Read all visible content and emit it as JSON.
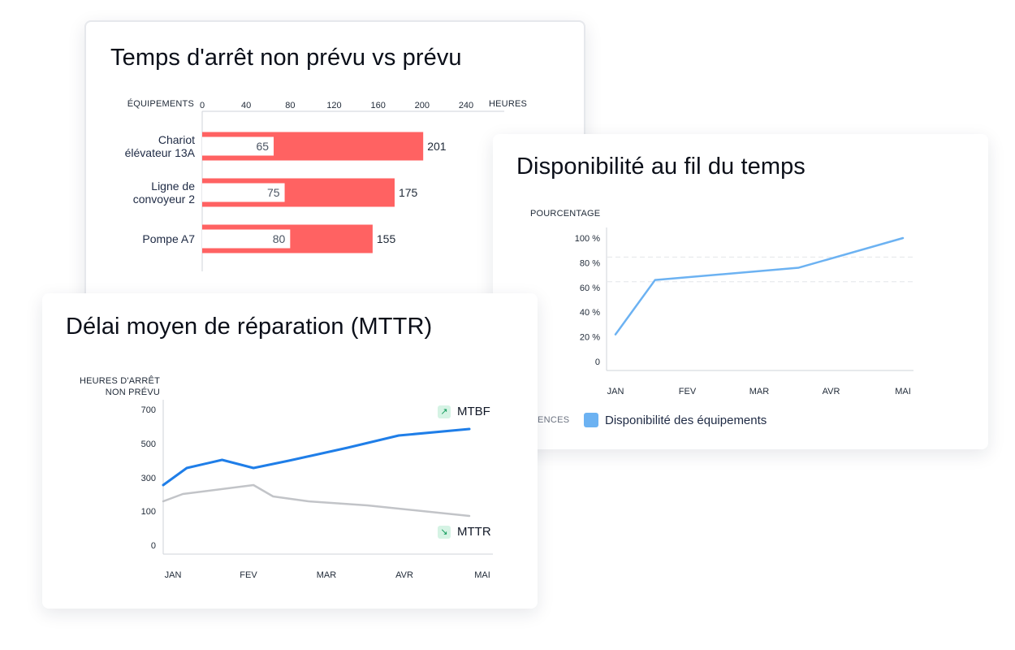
{
  "cards": {
    "downtime": {
      "title": "Temps d'arrêt non prévu vs prévu"
    },
    "availability": {
      "title": "Disponibilité au fil du temps"
    },
    "mttr": {
      "title": "Délai moyen de réparation (MTTR)"
    }
  },
  "chart_data": [
    {
      "id": "downtime",
      "type": "bar",
      "title": "Temps d'arrêt non prévu vs prévu",
      "ylabel": "ÉQUIPEMENTS",
      "xlabel": "HEURES",
      "xticks": [
        0,
        40,
        80,
        120,
        160,
        200,
        240
      ],
      "xlim": [
        0,
        260
      ],
      "categories": [
        [
          "Chariot",
          "élévateur 13A"
        ],
        [
          "Ligne de",
          "convoyeur 2"
        ],
        [
          "Pompe A7"
        ]
      ],
      "series": [
        {
          "values": [
            201,
            175,
            155
          ],
          "color": "#ff6262"
        },
        {
          "values": [
            65,
            75,
            80
          ],
          "color": "#ffffff"
        }
      ],
      "grid": false
    },
    {
      "id": "availability",
      "type": "line",
      "title": "Disponibilité au fil du temps",
      "ylabel": "POURCENTAGE",
      "yticks": [
        "100 %",
        "80 %",
        "60 %",
        "40 %",
        "20 %",
        "0"
      ],
      "ylim": [
        0,
        100
      ],
      "xlabels": [
        "JAN",
        "FEV",
        "MAR",
        "AVR",
        "MAI"
      ],
      "series": [
        {
          "name": "Disponibilité des équipements",
          "color": "#6cb2f2",
          "x": [
            0,
            0.55,
            2.55,
            4
          ],
          "y": [
            22,
            66,
            76,
            100
          ]
        }
      ],
      "legend": {
        "cut_label": "ENCES",
        "label": "Disponibilité des équipements"
      },
      "grid": "dashed"
    },
    {
      "id": "mttr",
      "type": "line",
      "title": "Délai moyen de réparation (MTTR)",
      "ylabel": [
        "HEURES D'ARRÊT",
        "NON PRÉVU"
      ],
      "yticks": [
        700,
        500,
        300,
        100,
        0
      ],
      "ylim": [
        0,
        800
      ],
      "xlabels": [
        "JAN",
        "FEV",
        "MAR",
        "AVR",
        "MAI"
      ],
      "series": [
        {
          "name": "MTBF",
          "color": "#1f7ee8",
          "x": [
            0,
            0.3,
            0.75,
            1.15,
            1.6,
            2.35,
            3.0,
            3.9
          ],
          "y": [
            270,
            400,
            450,
            400,
            460,
            580,
            700,
            760
          ]
        },
        {
          "name": "MTTR",
          "color": "#c2c4c8",
          "x": [
            0,
            0.25,
            1.15,
            1.4,
            1.85,
            2.6,
            3.9
          ],
          "y": [
            160,
            250,
            310,
            210,
            180,
            160,
            105
          ]
        }
      ],
      "grid": false
    }
  ]
}
